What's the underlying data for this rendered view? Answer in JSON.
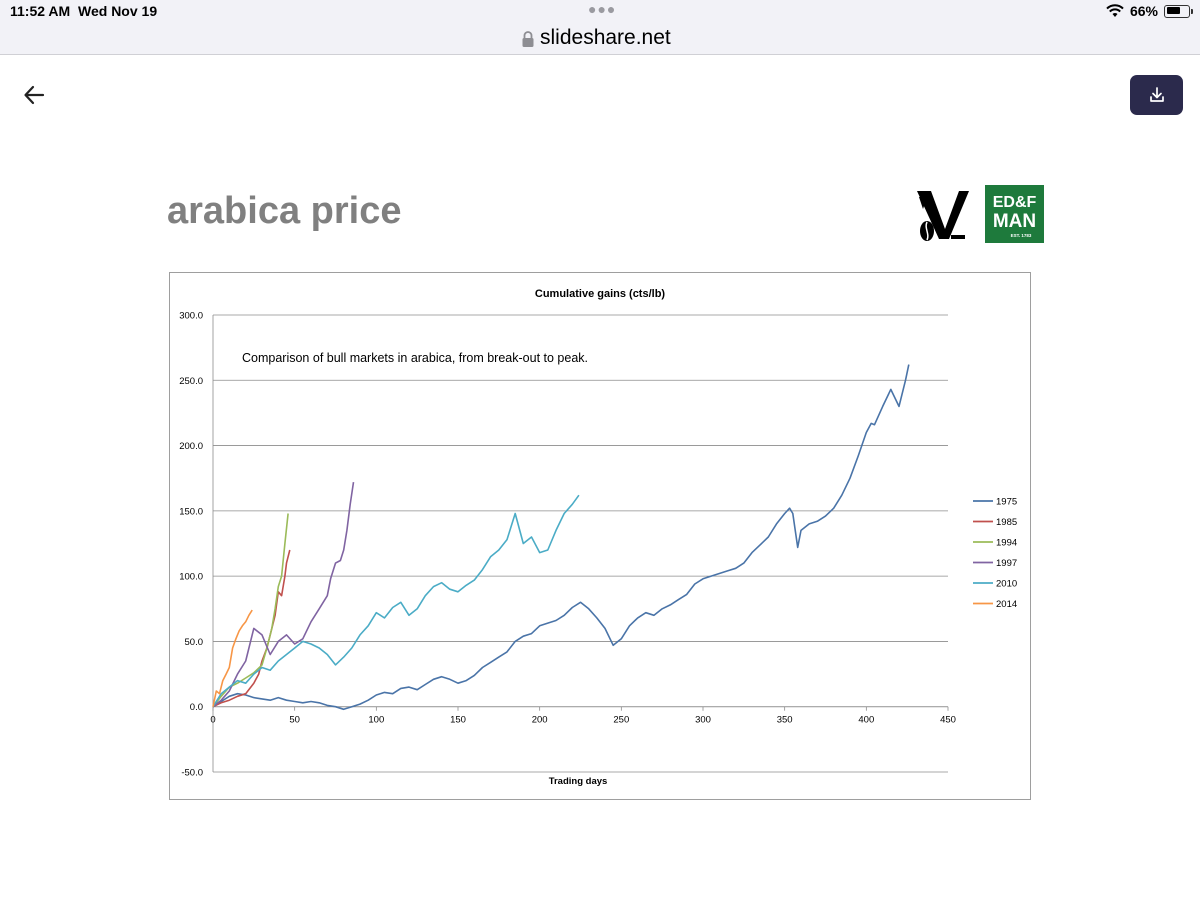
{
  "status_bar": {
    "time": "11:52 AM",
    "date": "Wed Nov 19",
    "battery": "66%",
    "battery_level": 0.66
  },
  "browser": {
    "url": "slideshare.net"
  },
  "slide": {
    "title": "arabica price",
    "logo_text": "ED&F MAN",
    "logo_text_line1": "ED&F",
    "logo_text_line2": "MAN",
    "logo_est": "EST. 1783"
  },
  "icons": {
    "back": "arrow-left-icon",
    "download": "download-icon",
    "lock": "lock-icon",
    "wifi": "wifi-icon",
    "battery": "battery-icon"
  },
  "colors": {
    "download_button": "#2b2a4c",
    "logo_green": "#1e7a3c",
    "title_gray": "#808080"
  },
  "chart_data": {
    "type": "line",
    "title": "Cumulative gains (cts/lb)",
    "annotation": "Comparison of bull markets in arabica, from break-out to peak.",
    "xlabel": "Trading days",
    "ylabel": "",
    "xlim": [
      0,
      450
    ],
    "ylim": [
      -50,
      300
    ],
    "x_ticks": [
      "0",
      "50",
      "100",
      "150",
      "200",
      "250",
      "300",
      "350",
      "400",
      "450"
    ],
    "y_ticks": [
      "-50.0",
      "0.0",
      "50.0",
      "100.0",
      "150.0",
      "200.0",
      "250.0",
      "300.0"
    ],
    "grid": "horizontal",
    "legend_position": "right",
    "series": [
      {
        "name": "1975",
        "color": "#4a74a8",
        "x": [
          0,
          5,
          10,
          15,
          20,
          25,
          30,
          35,
          40,
          45,
          50,
          55,
          60,
          65,
          70,
          75,
          80,
          85,
          90,
          95,
          100,
          105,
          110,
          115,
          120,
          125,
          130,
          135,
          140,
          145,
          150,
          155,
          160,
          165,
          170,
          175,
          180,
          185,
          190,
          195,
          200,
          205,
          210,
          215,
          220,
          225,
          230,
          235,
          240,
          245,
          250,
          255,
          260,
          265,
          270,
          275,
          280,
          285,
          290,
          295,
          300,
          305,
          310,
          315,
          320,
          325,
          330,
          335,
          340,
          345,
          350,
          353,
          355,
          358,
          360,
          365,
          370,
          375,
          380,
          385,
          390,
          395,
          400,
          403,
          405,
          410,
          415,
          420,
          424,
          426
        ],
        "values": [
          0,
          4,
          8,
          10,
          9,
          7,
          6,
          5,
          7,
          5,
          4,
          3,
          4,
          3,
          1,
          0,
          -2,
          0,
          2,
          5,
          9,
          11,
          10,
          14,
          15,
          13,
          17,
          21,
          23,
          21,
          18,
          20,
          24,
          30,
          34,
          38,
          42,
          50,
          54,
          56,
          62,
          64,
          66,
          70,
          76,
          80,
          75,
          68,
          60,
          47,
          52,
          62,
          68,
          72,
          70,
          75,
          78,
          82,
          86,
          94,
          98,
          100,
          102,
          104,
          106,
          110,
          118,
          124,
          130,
          140,
          148,
          152,
          148,
          122,
          135,
          140,
          142,
          146,
          152,
          162,
          175,
          192,
          210,
          217,
          216,
          230,
          243,
          230,
          250,
          262
        ]
      },
      {
        "name": "1985",
        "color": "#c0504d",
        "x": [
          0,
          5,
          10,
          15,
          20,
          25,
          28,
          30,
          33,
          35,
          38,
          40,
          42,
          44,
          45,
          47
        ],
        "values": [
          0,
          3,
          5,
          8,
          10,
          18,
          25,
          35,
          45,
          55,
          70,
          88,
          85,
          100,
          110,
          120
        ]
      },
      {
        "name": "1994",
        "color": "#9bbb59",
        "x": [
          0,
          5,
          10,
          15,
          20,
          25,
          30,
          33,
          36,
          38,
          40,
          42,
          44,
          46
        ],
        "values": [
          0,
          8,
          15,
          18,
          22,
          26,
          32,
          45,
          60,
          75,
          92,
          100,
          125,
          148
        ]
      },
      {
        "name": "1997",
        "color": "#8064a2",
        "x": [
          0,
          5,
          10,
          15,
          20,
          25,
          30,
          35,
          40,
          45,
          50,
          55,
          60,
          65,
          70,
          72,
          75,
          78,
          80,
          82,
          84,
          86
        ],
        "values": [
          0,
          5,
          12,
          25,
          35,
          60,
          55,
          40,
          50,
          55,
          48,
          52,
          65,
          75,
          85,
          98,
          110,
          112,
          120,
          135,
          155,
          172
        ]
      },
      {
        "name": "2010",
        "color": "#4bacc6",
        "x": [
          0,
          5,
          10,
          15,
          20,
          25,
          30,
          35,
          40,
          45,
          50,
          55,
          60,
          65,
          70,
          75,
          80,
          85,
          90,
          95,
          100,
          105,
          110,
          115,
          120,
          125,
          130,
          135,
          140,
          145,
          150,
          155,
          160,
          165,
          170,
          175,
          180,
          185,
          190,
          195,
          200,
          205,
          210,
          215,
          220,
          224
        ],
        "values": [
          0,
          10,
          15,
          20,
          18,
          25,
          30,
          28,
          35,
          40,
          45,
          50,
          48,
          45,
          40,
          32,
          38,
          45,
          55,
          62,
          72,
          68,
          76,
          80,
          70,
          75,
          85,
          92,
          95,
          90,
          88,
          93,
          97,
          105,
          115,
          120,
          128,
          148,
          125,
          130,
          118,
          120,
          135,
          148,
          155,
          162
        ]
      },
      {
        "name": "2014",
        "color": "#f79646",
        "x": [
          0,
          2,
          4,
          6,
          8,
          10,
          12,
          14,
          16,
          18,
          20,
          22,
          24
        ],
        "values": [
          0,
          12,
          10,
          20,
          25,
          30,
          45,
          52,
          58,
          62,
          65,
          70,
          74
        ]
      }
    ]
  }
}
